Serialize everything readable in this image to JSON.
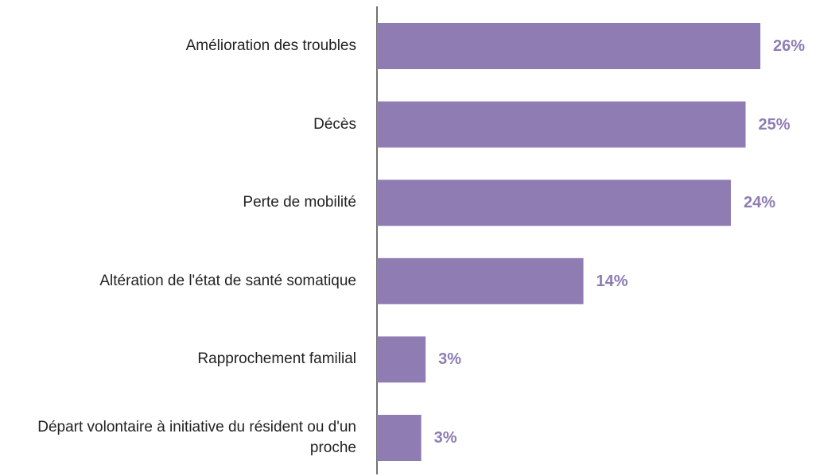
{
  "chart_data": {
    "type": "bar",
    "orientation": "horizontal",
    "categories": [
      "Amélioration des troubles",
      "Décès",
      "Perte de mobilité",
      "Altération de l'état de santé somatique",
      "Rapprochement familial",
      "Départ volontaire à initiative du résident ou d'un proche"
    ],
    "values": [
      26,
      25,
      24,
      14,
      3.3,
      3.0
    ],
    "value_labels": [
      "26%",
      "25%",
      "24%",
      "14%",
      "3%",
      "3%"
    ],
    "color": "#8e7cb3"
  }
}
